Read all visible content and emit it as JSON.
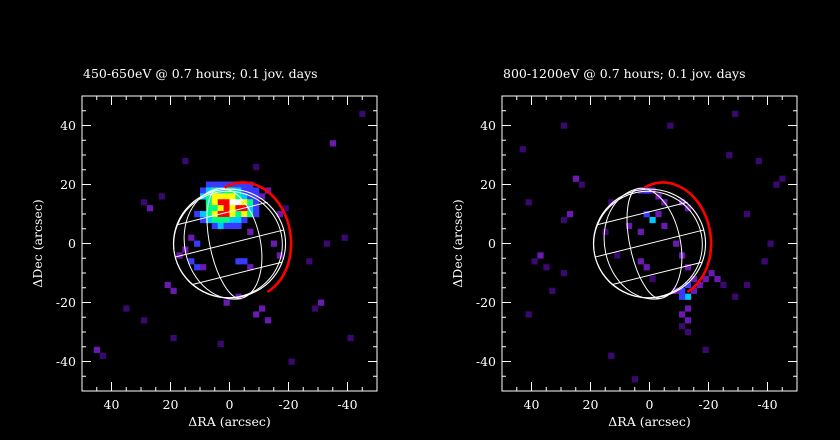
{
  "chart_data": [
    {
      "type": "heatmap",
      "title": "450-650eV @  0.7 hours; 0.1 jov. days",
      "xlabel": "ΔRA (arcsec)",
      "ylabel": "ΔDec (arcsec)",
      "xlim": [
        50,
        -50
      ],
      "ylim": [
        -50,
        50
      ],
      "x_ticks": [
        40,
        20,
        0,
        -20,
        -40
      ],
      "y_ticks": [
        -40,
        -20,
        0,
        20,
        40
      ],
      "grid": false,
      "colorscale": [
        "#1a0030",
        "#3a0870",
        "#6a1ab0",
        "#3a3aff",
        "#00c8ff",
        "#00ff80",
        "#ffff00",
        "#ff0000",
        "#ffffff"
      ],
      "cells": [
        [
          7,
          20,
          3
        ],
        [
          5,
          20,
          3
        ],
        [
          3,
          20,
          3
        ],
        [
          1,
          20,
          3
        ],
        [
          -1,
          20,
          3
        ],
        [
          -3,
          20,
          3
        ],
        [
          -5,
          20,
          3
        ],
        [
          -7,
          20,
          3
        ],
        [
          9,
          18,
          3
        ],
        [
          7,
          18,
          4
        ],
        [
          5,
          18,
          5
        ],
        [
          3,
          18,
          4
        ],
        [
          1,
          18,
          5
        ],
        [
          -1,
          18,
          5
        ],
        [
          -3,
          18,
          4
        ],
        [
          -5,
          18,
          3
        ],
        [
          -7,
          18,
          3
        ],
        [
          -9,
          18,
          3
        ],
        [
          -13,
          18,
          2
        ],
        [
          9,
          16,
          4
        ],
        [
          7,
          16,
          5
        ],
        [
          5,
          16,
          6
        ],
        [
          3,
          16,
          6
        ],
        [
          1,
          16,
          6
        ],
        [
          -1,
          16,
          6
        ],
        [
          -3,
          16,
          5
        ],
        [
          -5,
          16,
          4
        ],
        [
          -7,
          16,
          3
        ],
        [
          -9,
          16,
          3
        ],
        [
          -11,
          16,
          2
        ],
        [
          7,
          14,
          5
        ],
        [
          5,
          14,
          6
        ],
        [
          3,
          14,
          7
        ],
        [
          1,
          14,
          7
        ],
        [
          -1,
          14,
          8
        ],
        [
          -3,
          14,
          8
        ],
        [
          -5,
          14,
          6
        ],
        [
          -7,
          14,
          5
        ],
        [
          -9,
          14,
          3
        ],
        [
          7,
          12,
          5
        ],
        [
          5,
          12,
          5
        ],
        [
          3,
          12,
          6
        ],
        [
          1,
          12,
          7
        ],
        [
          -1,
          12,
          6
        ],
        [
          -3,
          12,
          7
        ],
        [
          -5,
          12,
          7
        ],
        [
          -7,
          12,
          4
        ],
        [
          -9,
          12,
          3
        ],
        [
          11,
          10,
          3
        ],
        [
          9,
          10,
          4
        ],
        [
          7,
          10,
          5
        ],
        [
          5,
          10,
          6
        ],
        [
          3,
          10,
          7
        ],
        [
          1,
          10,
          7
        ],
        [
          -1,
          10,
          6
        ],
        [
          -3,
          10,
          5
        ],
        [
          -5,
          10,
          6
        ],
        [
          -7,
          10,
          5
        ],
        [
          -9,
          10,
          3
        ],
        [
          9,
          8,
          3
        ],
        [
          7,
          8,
          4
        ],
        [
          5,
          8,
          5
        ],
        [
          3,
          8,
          5
        ],
        [
          1,
          8,
          5
        ],
        [
          -1,
          8,
          4
        ],
        [
          -3,
          8,
          4
        ],
        [
          -5,
          8,
          3
        ],
        [
          5,
          6,
          3
        ],
        [
          3,
          6,
          4
        ],
        [
          1,
          6,
          3
        ],
        [
          -1,
          6,
          3
        ],
        [
          -3,
          6,
          3
        ],
        [
          27,
          12,
          2
        ],
        [
          -17,
          10,
          2
        ],
        [
          -19,
          12,
          1
        ],
        [
          29,
          14,
          1
        ],
        [
          23,
          16,
          1
        ],
        [
          13,
          2,
          2
        ],
        [
          11,
          0,
          3
        ],
        [
          -7,
          4,
          2
        ],
        [
          -15,
          0,
          2
        ],
        [
          15,
          -2,
          2
        ],
        [
          17,
          -4,
          2
        ],
        [
          13,
          -6,
          3
        ],
        [
          11,
          -8,
          3
        ],
        [
          9,
          -8,
          2
        ],
        [
          -3,
          -6,
          3
        ],
        [
          -5,
          -6,
          3
        ],
        [
          -7,
          -8,
          2
        ],
        [
          21,
          -14,
          2
        ],
        [
          19,
          -16,
          2
        ],
        [
          -3,
          -18,
          2
        ],
        [
          1,
          -20,
          2
        ],
        [
          -11,
          -22,
          2
        ],
        [
          -9,
          -24,
          2
        ],
        [
          -13,
          -26,
          2
        ],
        [
          -31,
          -20,
          2
        ],
        [
          -29,
          -22,
          1
        ],
        [
          -17,
          -4,
          2
        ],
        [
          -27,
          -6,
          1
        ],
        [
          -33,
          0,
          1
        ],
        [
          -39,
          2,
          1
        ],
        [
          -35,
          34,
          2
        ],
        [
          -41,
          -32,
          1
        ],
        [
          19,
          -32,
          1
        ],
        [
          3,
          -34,
          1
        ],
        [
          -21,
          -40,
          1
        ],
        [
          45,
          -36,
          2
        ],
        [
          43,
          -38,
          1
        ],
        [
          35,
          -22,
          1
        ],
        [
          29,
          -26,
          1
        ],
        [
          -9,
          26,
          1
        ],
        [
          -45,
          44,
          1
        ],
        [
          15,
          28,
          1
        ]
      ]
    },
    {
      "type": "heatmap",
      "title": "800-1200eV @  0.7 hours; 0.1 jov. days",
      "xlabel": "ΔRA (arcsec)",
      "ylabel": "ΔDec (arcsec)",
      "xlim": [
        50,
        -50
      ],
      "ylim": [
        -50,
        50
      ],
      "x_ticks": [
        40,
        20,
        0,
        -20,
        -40
      ],
      "y_ticks": [
        -40,
        -20,
        0,
        20,
        40
      ],
      "grid": false,
      "colorscale": [
        "#1a0030",
        "#3a0870",
        "#6a1ab0",
        "#3a3aff",
        "#00c8ff",
        "#00ff80",
        "#ffff00",
        "#ff0000",
        "#ffffff"
      ],
      "cells": [
        [
          3,
          18,
          2
        ],
        [
          1,
          18,
          3
        ],
        [
          -1,
          18,
          2
        ],
        [
          -3,
          16,
          2
        ],
        [
          -5,
          14,
          2
        ],
        [
          -11,
          14,
          2
        ],
        [
          -13,
          12,
          2
        ],
        [
          1,
          10,
          3
        ],
        [
          -1,
          8,
          4
        ],
        [
          -3,
          10,
          2
        ],
        [
          -5,
          6,
          2
        ],
        [
          7,
          6,
          2
        ],
        [
          3,
          4,
          2
        ],
        [
          25,
          22,
          2
        ],
        [
          23,
          20,
          1
        ],
        [
          13,
          14,
          1
        ],
        [
          27,
          10,
          2
        ],
        [
          29,
          8,
          1
        ],
        [
          41,
          14,
          1
        ],
        [
          15,
          4,
          1
        ],
        [
          -9,
          0,
          2
        ],
        [
          -11,
          -4,
          2
        ],
        [
          -13,
          -8,
          2
        ],
        [
          -15,
          -12,
          2
        ],
        [
          -13,
          -14,
          3
        ],
        [
          -11,
          -16,
          3
        ],
        [
          -13,
          -18,
          4
        ],
        [
          -11,
          -18,
          3
        ],
        [
          -9,
          -16,
          2
        ],
        [
          -15,
          -16,
          2
        ],
        [
          -17,
          -14,
          2
        ],
        [
          -19,
          -12,
          2
        ],
        [
          -21,
          -10,
          2
        ],
        [
          -23,
          -12,
          2
        ],
        [
          -25,
          -14,
          1
        ],
        [
          -13,
          -22,
          2
        ],
        [
          -11,
          -24,
          2
        ],
        [
          -13,
          -26,
          2
        ],
        [
          -11,
          -28,
          1
        ],
        [
          -13,
          -30,
          1
        ],
        [
          3,
          -6,
          2
        ],
        [
          1,
          -8,
          2
        ],
        [
          11,
          -4,
          1
        ],
        [
          -1,
          -12,
          1
        ],
        [
          37,
          -4,
          2
        ],
        [
          39,
          -6,
          1
        ],
        [
          35,
          -8,
          1
        ],
        [
          29,
          -10,
          1
        ],
        [
          33,
          -16,
          1
        ],
        [
          -29,
          -18,
          1
        ],
        [
          -33,
          -14,
          1
        ],
        [
          -39,
          -6,
          1
        ],
        [
          -37,
          28,
          1
        ],
        [
          -27,
          30,
          1
        ],
        [
          -43,
          20,
          1
        ],
        [
          -45,
          22,
          1
        ],
        [
          43,
          32,
          1
        ],
        [
          13,
          -38,
          1
        ],
        [
          -19,
          -36,
          1
        ],
        [
          41,
          -24,
          1
        ],
        [
          -7,
          40,
          1
        ],
        [
          29,
          40,
          1
        ],
        [
          -33,
          10,
          1
        ],
        [
          -41,
          0,
          1
        ],
        [
          5,
          -46,
          1
        ],
        [
          -29,
          44,
          1
        ]
      ]
    }
  ],
  "overlay": {
    "planet_center": [
      0,
      0
    ],
    "planet_radius_arcsec": 19,
    "limb_color": "#ff0000",
    "grid_color": "#ffffff"
  }
}
